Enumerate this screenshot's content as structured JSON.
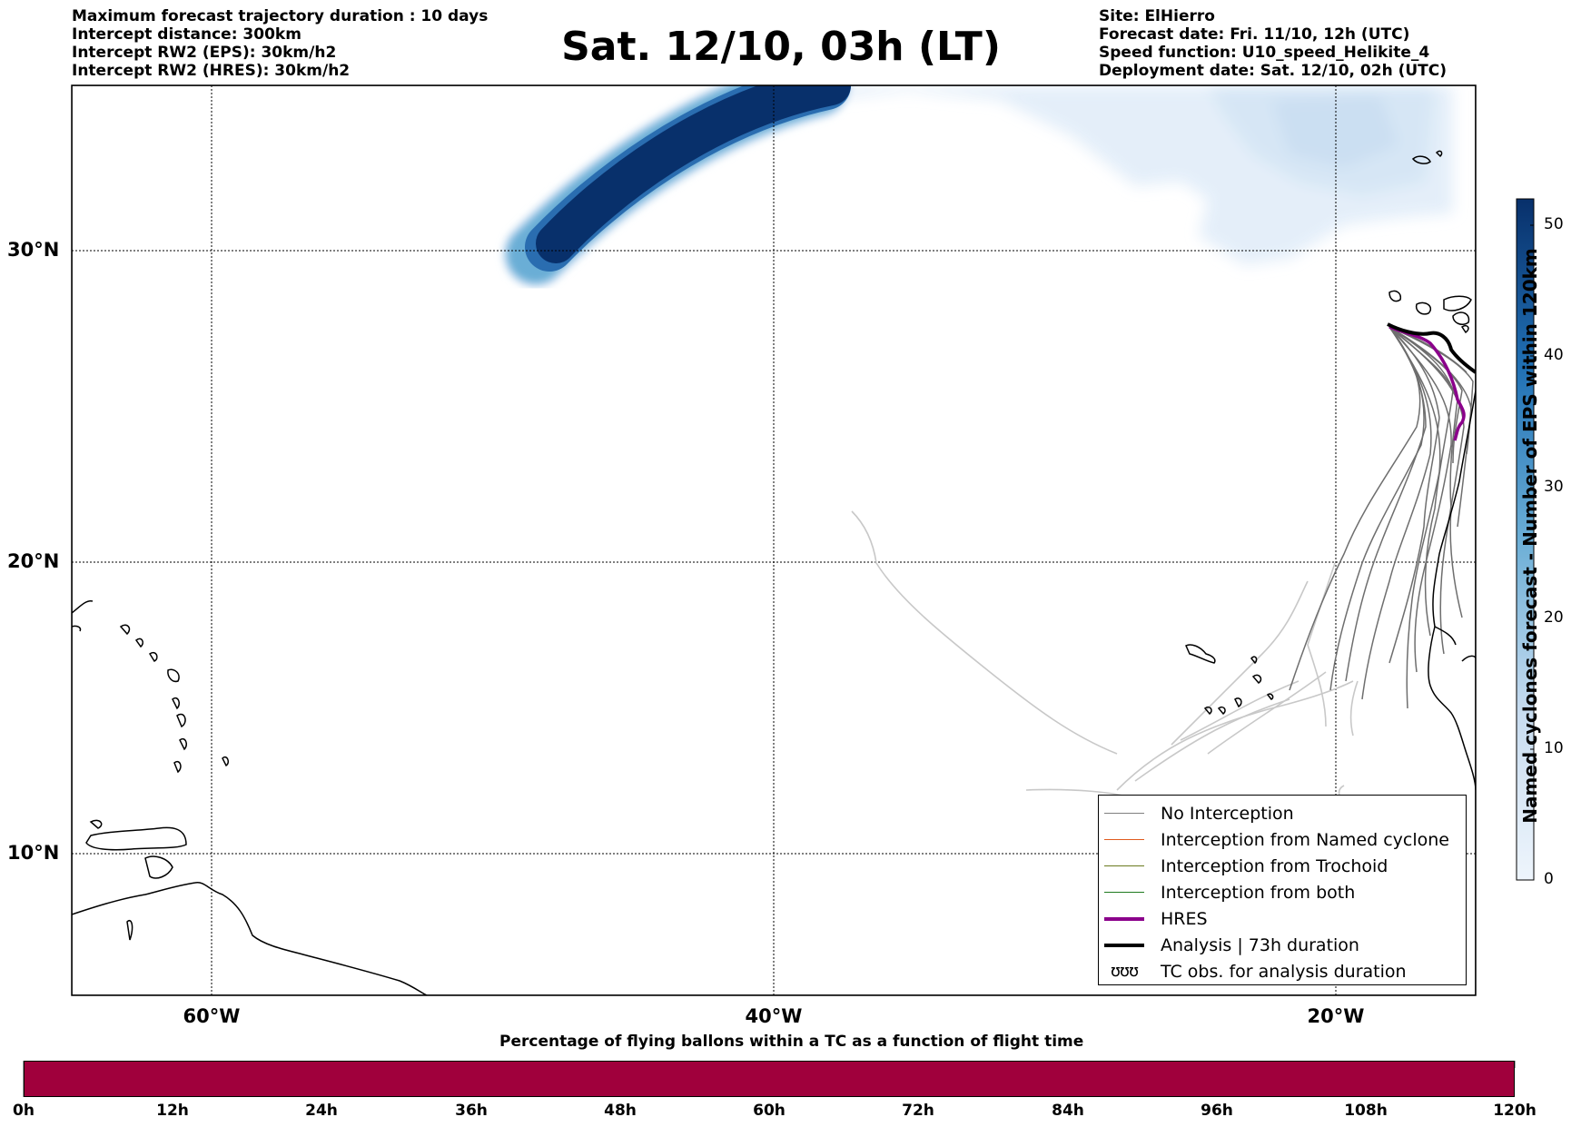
{
  "header": {
    "left_lines": [
      "Maximum forecast trajectory duration : 10 days",
      "Intercept distance: 300km",
      "Intercept RW2 (EPS):  30km/h2",
      "Intercept RW2 (HRES): 30km/h2"
    ],
    "title": "Sat. 12/10, 03h (LT)",
    "right_lines": [
      "Site: ElHierro",
      "Forecast date: Fri. 11/10, 12h (UTC)",
      "Speed function: U10_speed_Helikite_4",
      "Deployment date: Sat. 12/10, 02h (UTC)"
    ]
  },
  "map": {
    "lat_labels": [
      "30°N",
      "20°N",
      "10°N"
    ],
    "lon_labels": [
      "60°W",
      "40°W",
      "20°W"
    ],
    "features": [
      "coastline-caribbean",
      "coastline-south-america",
      "coastline-west-africa",
      "canary-islands",
      "cape-verde-islands",
      "eps-named-cyclone-density",
      "balloon-trajectories"
    ]
  },
  "legend": {
    "items": [
      {
        "label": "No Interception",
        "color": "#808080"
      },
      {
        "label": "Interception from Named cyclone",
        "color": "#e05a1e"
      },
      {
        "label": "Interception from Trochoid",
        "color": "#6b7a1e"
      },
      {
        "label": "Interception from both",
        "color": "#1e7a1e"
      },
      {
        "label": "HRES",
        "color": "#8b008b"
      },
      {
        "label": "Analysis | 73h duration",
        "color": "#000000"
      },
      {
        "label": "TC obs. for analysis duration",
        "symbol": "ʊʊʊ"
      }
    ]
  },
  "colorbar": {
    "title": "Named cyclones forecast - Number of EPS within 120km",
    "ticks": [
      "0",
      "10",
      "20",
      "30",
      "40",
      "50"
    ],
    "color_low": "#e8f1fa",
    "color_high": "#08306b"
  },
  "flight_bar": {
    "title": "Percentage of flying ballons within a TC as a function of flight time",
    "ticks": [
      "0h",
      "12h",
      "24h",
      "36h",
      "48h",
      "60h",
      "72h",
      "84h",
      "96h",
      "108h",
      "120h"
    ],
    "color": "#a0003c"
  }
}
